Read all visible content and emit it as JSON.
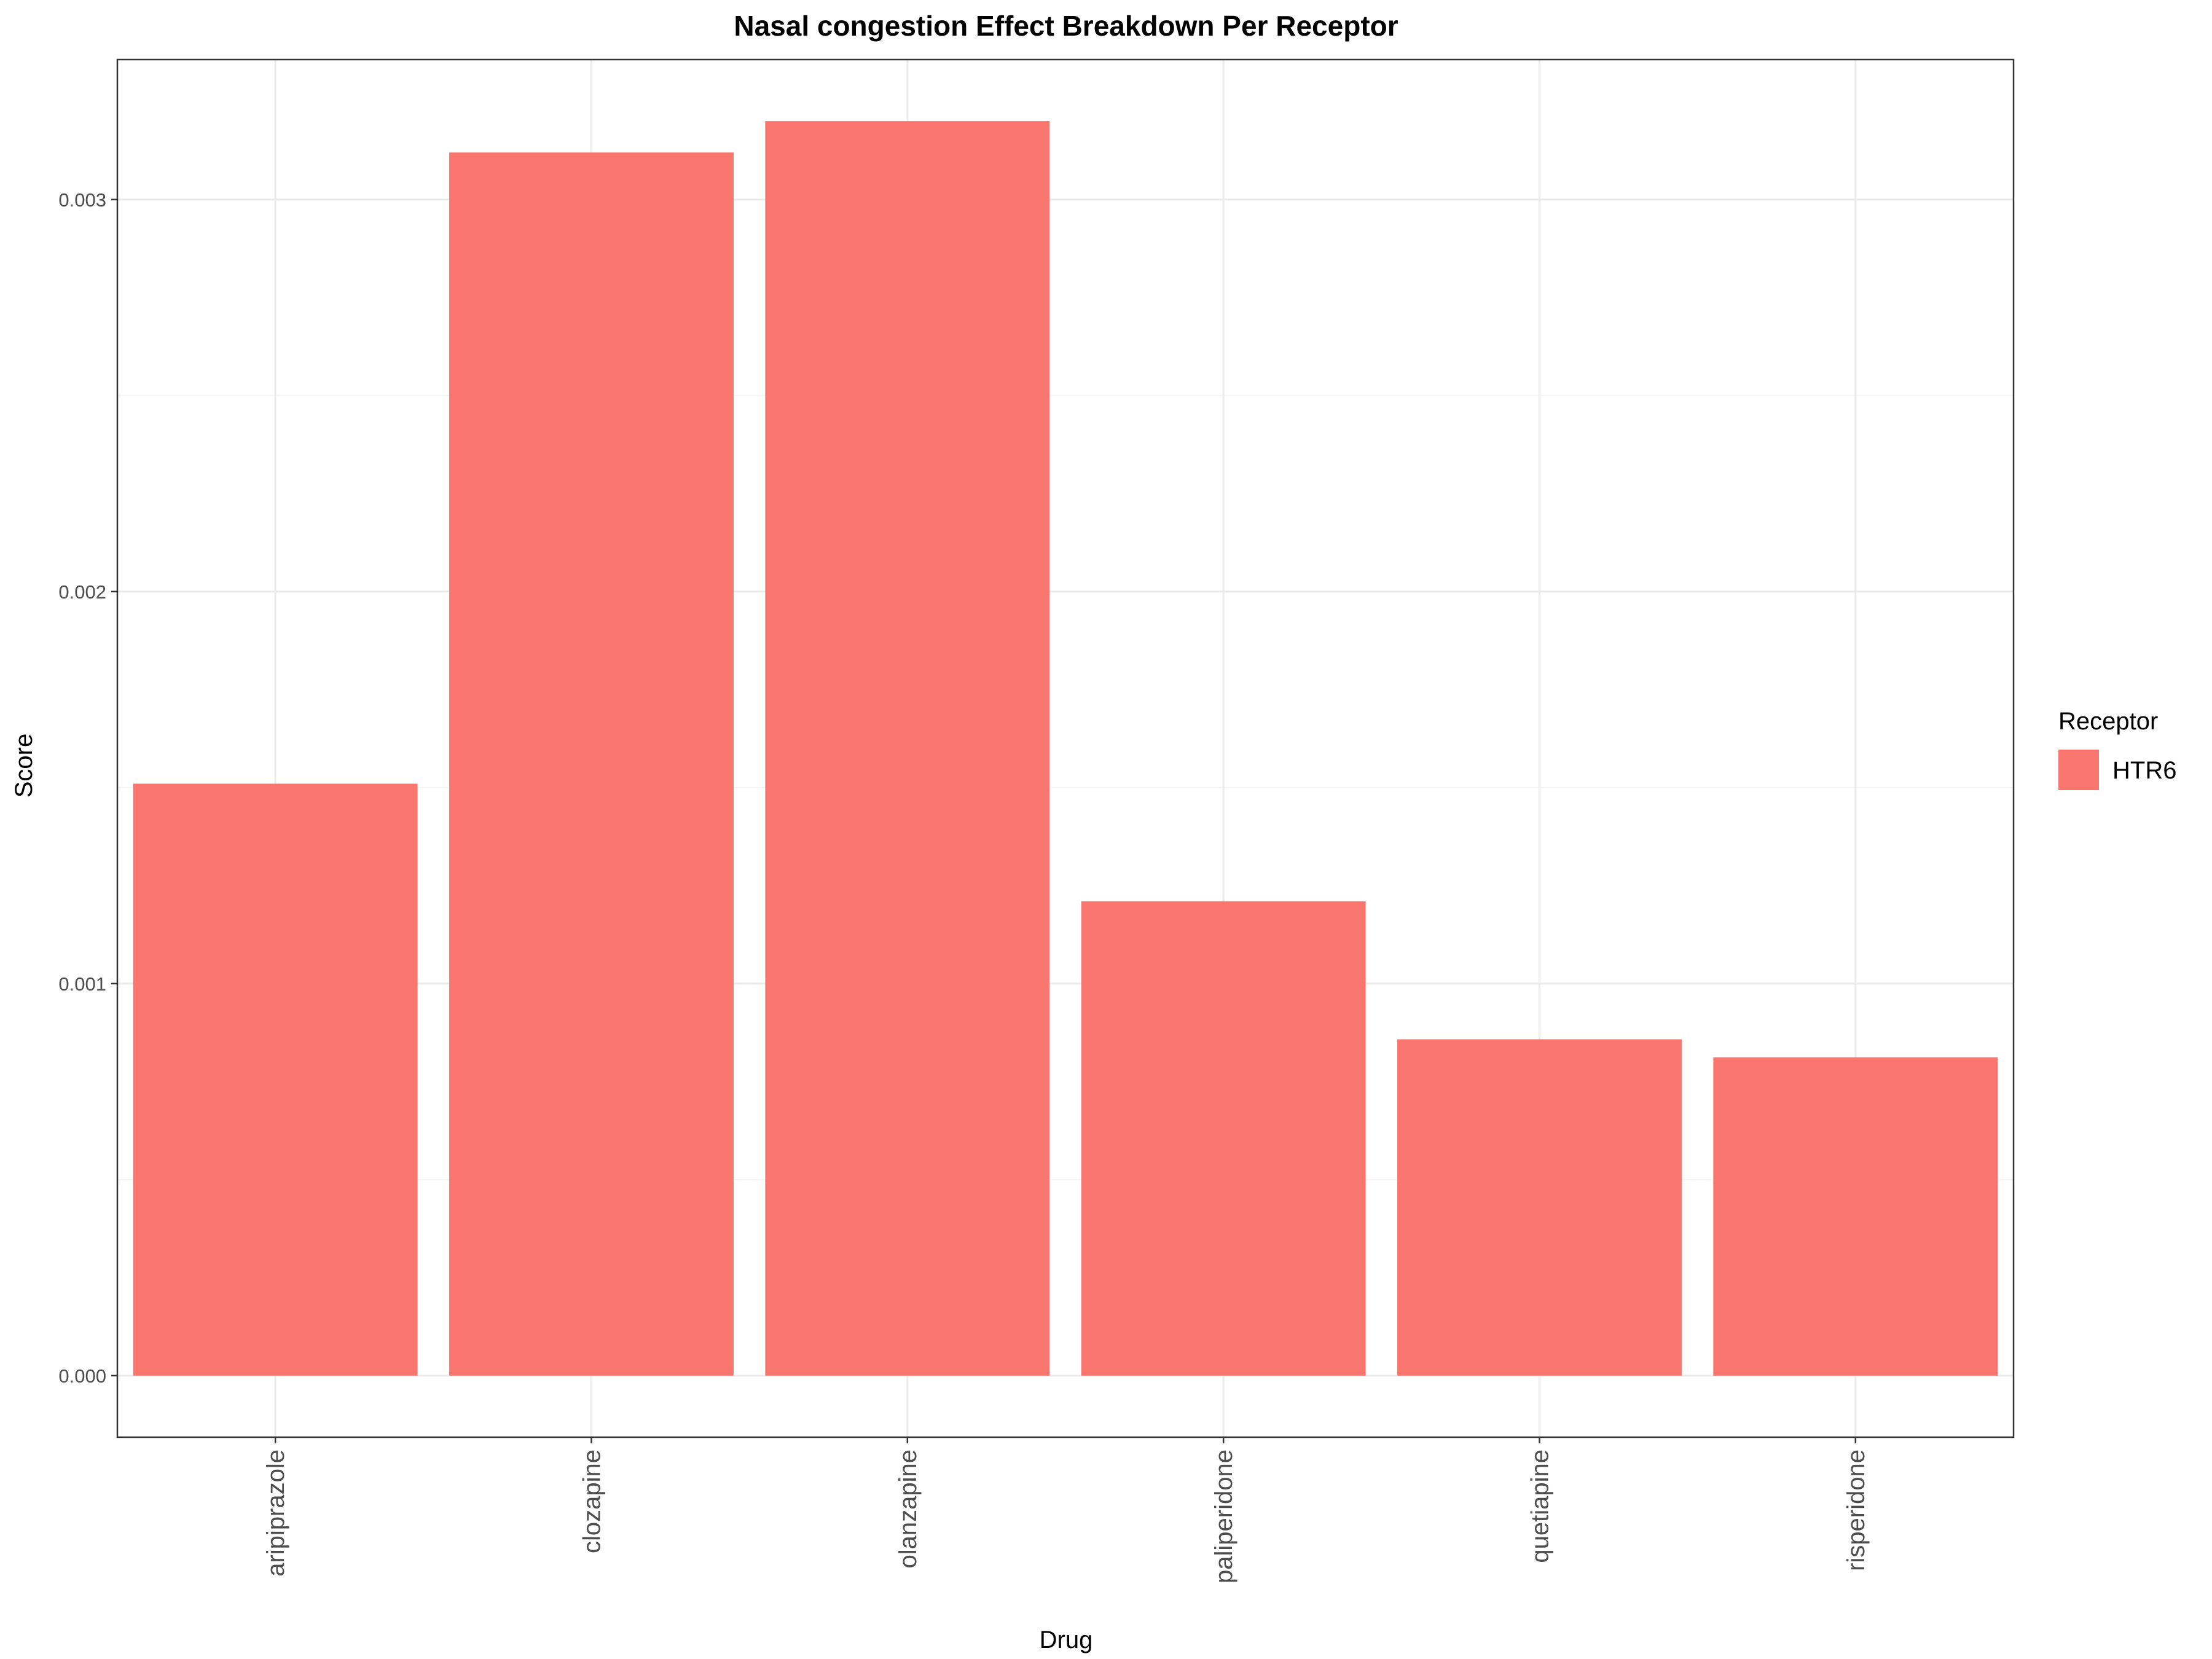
{
  "chart_data": {
    "type": "bar",
    "title": "Nasal congestion Effect Breakdown Per Receptor",
    "xlabel": "Drug",
    "ylabel": "Score",
    "categories": [
      "aripiprazole",
      "clozapine",
      "olanzapine",
      "paliperidone",
      "quetiapine",
      "risperidone"
    ],
    "series": [
      {
        "name": "HTR6",
        "values": [
          0.00151,
          0.00312,
          0.0032,
          0.00121,
          0.000858,
          0.000812
        ],
        "color": "#F8766D"
      }
    ],
    "ylim": [
      -0.000157,
      0.003357
    ],
    "y_ticks": [
      "0.000",
      "0.001",
      "0.002",
      "0.003"
    ],
    "y_tick_values": [
      0,
      0.001,
      0.002,
      0.003
    ],
    "grid": true,
    "legend": {
      "title": "Receptor",
      "placement": "right"
    },
    "colors": {
      "panel_border": "#333333",
      "grid_major": "#ebebeb",
      "grid_minor": "#f5f5f5"
    }
  }
}
